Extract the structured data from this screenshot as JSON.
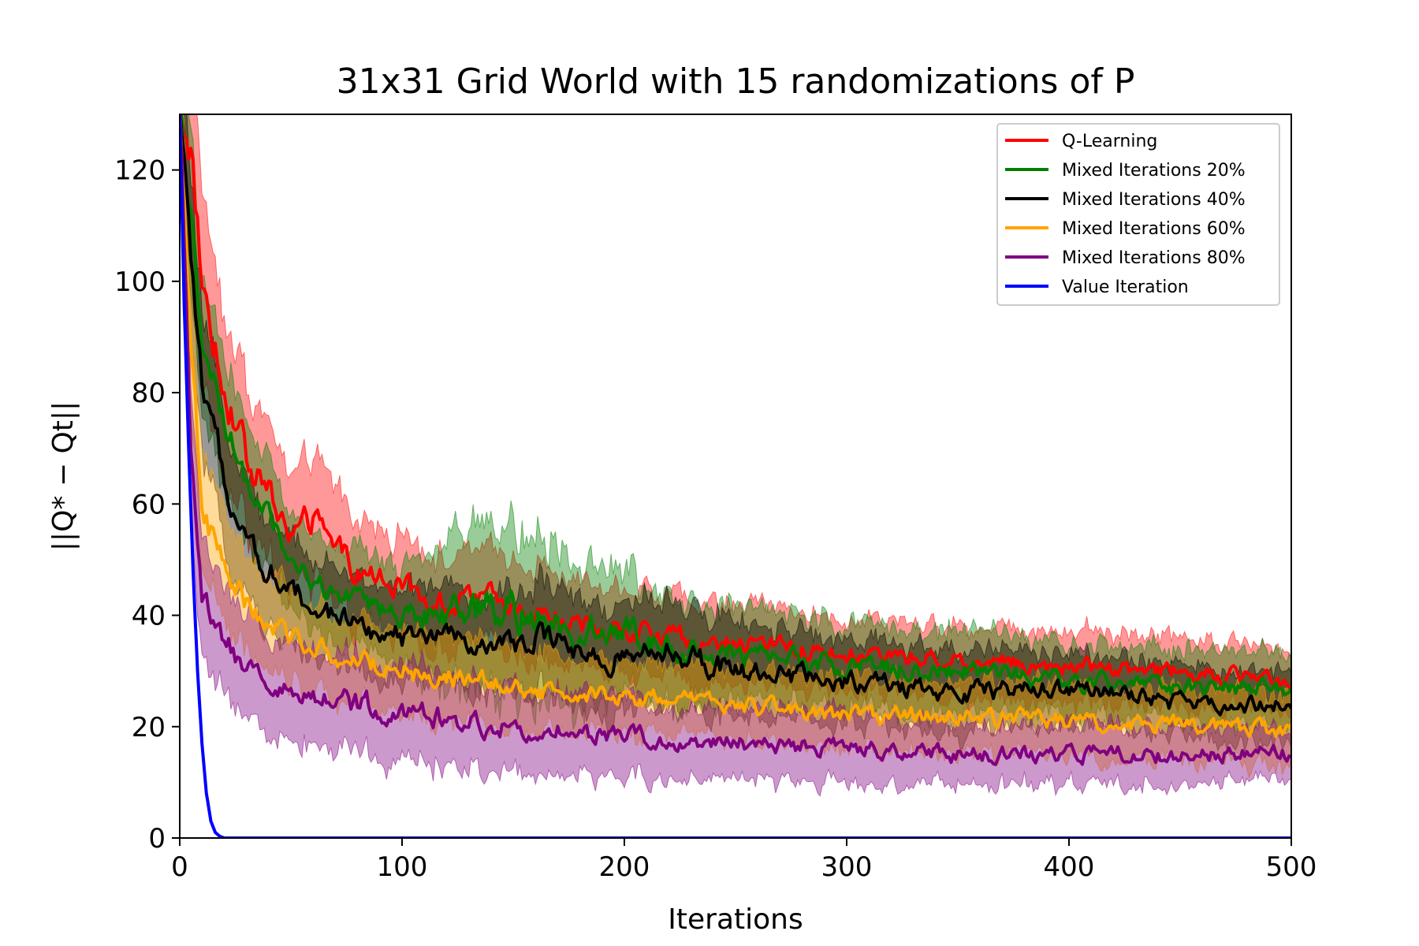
{
  "chart_data": {
    "type": "line",
    "title": "31x31 Grid World with 15 randomizations of P",
    "xlabel": "Iterations",
    "ylabel": "||Q* − Qt||",
    "xlim": [
      0,
      500
    ],
    "ylim": [
      0,
      130
    ],
    "xticks": [
      0,
      100,
      200,
      300,
      400,
      500
    ],
    "yticks": [
      0,
      20,
      40,
      60,
      80,
      100,
      120
    ],
    "grid": false,
    "legend_position": "top-right",
    "series": [
      {
        "name": "Q-Learning",
        "color": "#ff0000",
        "x": [
          0,
          5,
          10,
          20,
          30,
          40,
          50,
          60,
          70,
          80,
          100,
          120,
          140,
          160,
          180,
          200,
          220,
          250,
          300,
          350,
          400,
          450,
          500
        ],
        "values": [
          130,
          125,
          100,
          82,
          68,
          62,
          55,
          57,
          52,
          48,
          45,
          42,
          43,
          41,
          38,
          38,
          36,
          35,
          33,
          32,
          31,
          30,
          28
        ],
        "band": [
          15,
          18,
          16,
          14,
          12,
          11,
          10,
          10,
          10,
          9,
          8,
          8,
          8,
          8,
          7,
          7,
          7,
          7,
          6,
          6,
          6,
          6,
          5
        ]
      },
      {
        "name": "Mixed Iterations 20%",
        "color": "#008000",
        "x": [
          0,
          5,
          10,
          20,
          30,
          40,
          50,
          60,
          70,
          80,
          100,
          120,
          140,
          160,
          180,
          200,
          220,
          250,
          300,
          350,
          400,
          450,
          500
        ],
        "values": [
          130,
          110,
          88,
          74,
          64,
          58,
          50,
          46,
          44,
          42,
          40,
          40,
          41,
          40,
          38,
          37,
          35,
          33,
          31,
          30,
          28,
          27,
          27
        ],
        "band": [
          12,
          14,
          12,
          11,
          10,
          9,
          8,
          8,
          8,
          8,
          8,
          12,
          14,
          14,
          12,
          10,
          9,
          8,
          7,
          7,
          6,
          6,
          6
        ]
      },
      {
        "name": "Mixed Iterations 40%",
        "color": "#000000",
        "x": [
          0,
          5,
          10,
          20,
          30,
          40,
          50,
          60,
          70,
          80,
          100,
          120,
          140,
          160,
          180,
          200,
          220,
          250,
          300,
          350,
          400,
          450,
          500
        ],
        "values": [
          130,
          105,
          80,
          65,
          55,
          48,
          45,
          42,
          40,
          38,
          36,
          36,
          34,
          36,
          33,
          32,
          33,
          30,
          28,
          26,
          27,
          24,
          24
        ],
        "band": [
          12,
          13,
          12,
          11,
          10,
          9,
          9,
          8,
          8,
          8,
          8,
          8,
          8,
          9,
          9,
          9,
          9,
          8,
          7,
          7,
          6,
          6,
          6
        ]
      },
      {
        "name": "Mixed Iterations 60%",
        "color": "#ffa500",
        "x": [
          0,
          5,
          10,
          20,
          30,
          40,
          50,
          60,
          70,
          80,
          100,
          120,
          140,
          160,
          180,
          200,
          220,
          250,
          300,
          350,
          400,
          450,
          500
        ],
        "values": [
          130,
          90,
          60,
          48,
          42,
          38,
          36,
          35,
          33,
          32,
          30,
          29,
          28,
          27,
          26,
          25,
          25,
          24,
          22,
          22,
          21,
          20,
          19
        ],
        "band": [
          12,
          12,
          10,
          9,
          8,
          8,
          8,
          7,
          7,
          7,
          7,
          7,
          7,
          7,
          6,
          6,
          6,
          6,
          6,
          6,
          6,
          6,
          6
        ]
      },
      {
        "name": "Mixed Iterations 80%",
        "color": "#800080",
        "x": [
          0,
          5,
          10,
          20,
          30,
          40,
          50,
          60,
          70,
          80,
          100,
          120,
          140,
          160,
          180,
          200,
          220,
          250,
          300,
          350,
          400,
          450,
          500
        ],
        "values": [
          130,
          70,
          42,
          35,
          30,
          28,
          27,
          26,
          25,
          24,
          23,
          22,
          20,
          20,
          19,
          18,
          17,
          17,
          16,
          15,
          15,
          15,
          15
        ],
        "band": [
          12,
          12,
          10,
          9,
          9,
          8,
          8,
          8,
          8,
          8,
          8,
          8,
          7,
          7,
          7,
          7,
          6,
          6,
          6,
          5,
          5,
          5,
          4
        ]
      },
      {
        "name": "Value Iteration",
        "color": "#0000ff",
        "x": [
          0,
          2,
          4,
          6,
          8,
          10,
          12,
          14,
          16,
          18,
          20,
          500
        ],
        "values": [
          130,
          96,
          70,
          48,
          30,
          17,
          8,
          3,
          1,
          0.3,
          0,
          0
        ],
        "band": [
          0,
          0,
          0,
          0,
          0,
          0,
          0,
          0,
          0,
          0,
          0,
          0
        ]
      }
    ]
  }
}
